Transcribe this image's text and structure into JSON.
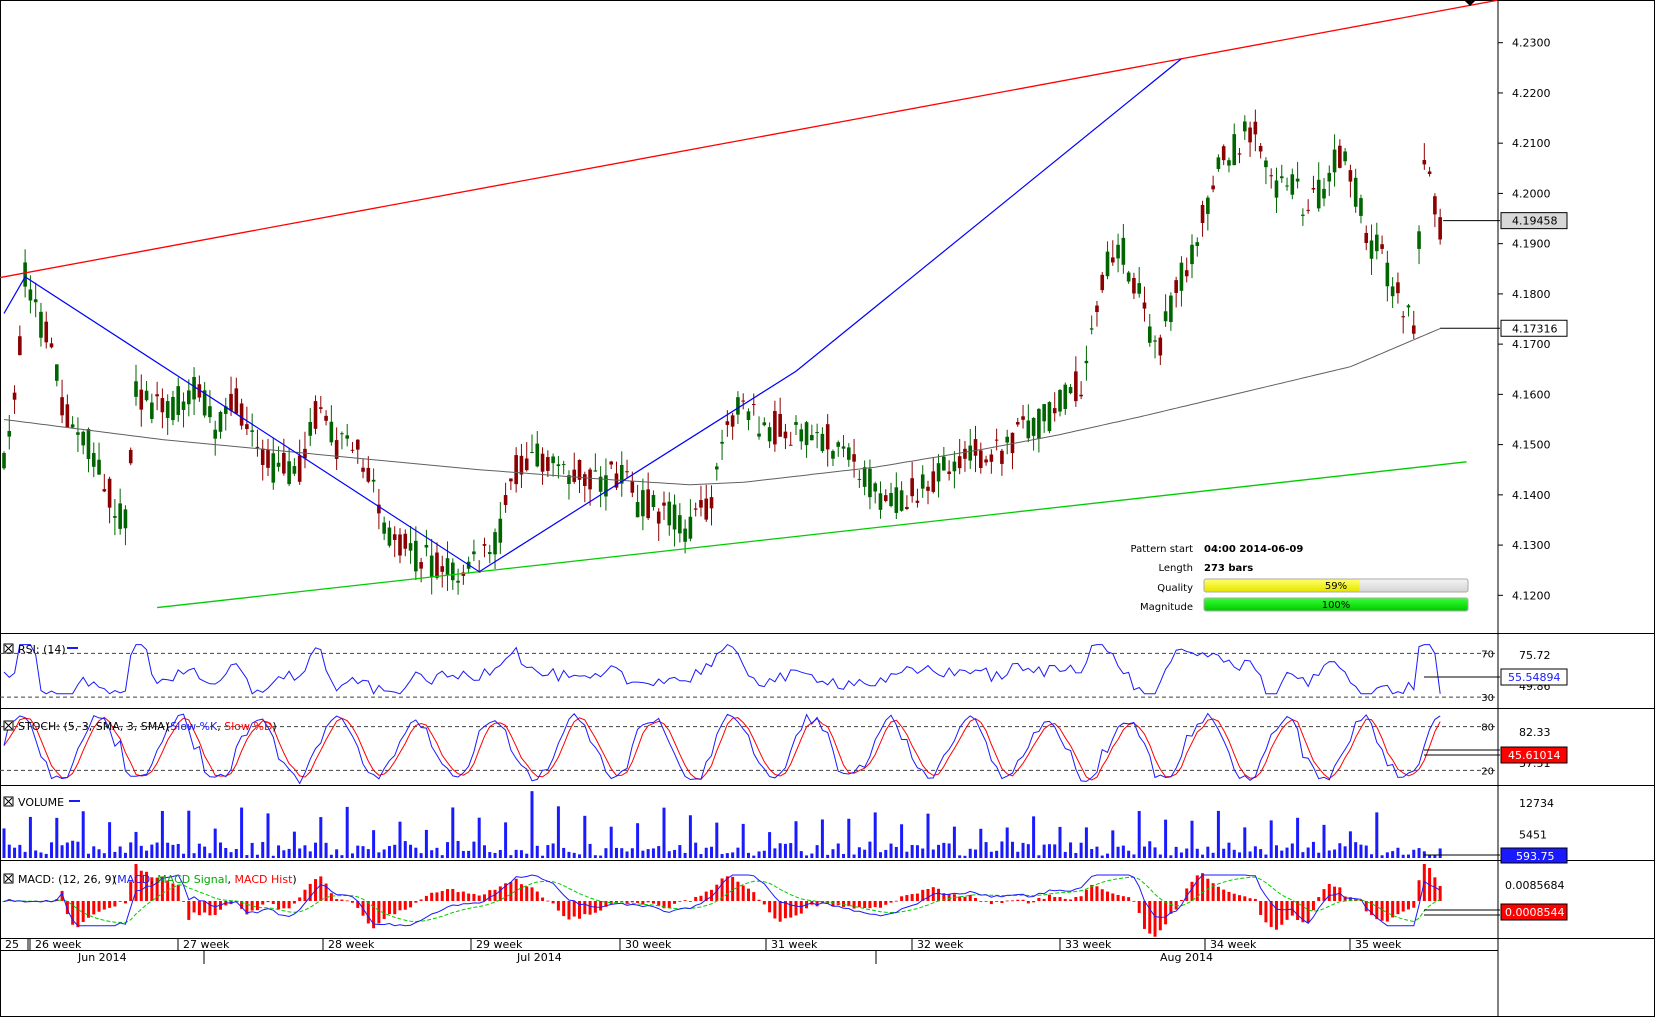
{
  "colors": {
    "bull": "#006400",
    "bear": "#8b0000",
    "resistance": "#ff0000",
    "support": "#00cc00",
    "zigzag": "#0000ff",
    "ma": "#606060",
    "rsi": "#1a1aff",
    "stoch_k": "#1a1aff",
    "stoch_d": "#ff0000",
    "volume": "#1a1aff",
    "macd": "#1a1aff",
    "macd_signal": "#00cc00",
    "macd_hist": "#ff0000",
    "quality_fill": "#ffff00",
    "magnitude_fill": "#00ee00"
  },
  "chart_data": [
    {
      "type": "candlestick",
      "title": "",
      "x_labels": [
        "25",
        "26 week",
        "27 week",
        "28 week",
        "29 week",
        "30 week",
        "31 week",
        "32 week",
        "33 week",
        "34 week",
        "35 week"
      ],
      "month_labels": [
        "Jun 2014",
        "Jul 2014",
        "Aug 2014"
      ],
      "ylim": [
        4.1125,
        4.2385
      ],
      "y_ticks": [
        "4.1200",
        "4.1300",
        "4.1400",
        "4.1500",
        "4.1600",
        "4.1700",
        "4.1800",
        "4.1900",
        "4.2000",
        "4.2100",
        "4.2200",
        "4.2300"
      ],
      "last_price": "4.19458",
      "ma_value": "4.17316",
      "ma_period_note": "",
      "pattern": {
        "title_start": "Pattern start",
        "start": "04:00 2014-06-09",
        "title_length": "Length",
        "length": "273 bars",
        "title_quality": "Quality",
        "quality_label": "59%",
        "quality": 0.59,
        "title_magnitude": "Magnitude",
        "magnitude_label": "100%",
        "magnitude": 1.0
      },
      "zigzag": [
        [
          0,
          4.1761
        ],
        [
          4,
          4.1834
        ],
        [
          90,
          4.1247
        ],
        [
          150,
          4.1646
        ],
        [
          223,
          4.2268
        ]
      ],
      "resistance_line": [
        [
          0,
          4.1834
        ],
        [
          223,
          4.2268
        ]
      ],
      "support_line": [
        [
          90,
          4.1247
        ],
        [
          143,
          4.1309
        ]
      ]
    },
    {
      "type": "line",
      "title": "RSI: (14)",
      "ylim": [
        20,
        85
      ],
      "levels": [
        "70",
        "30"
      ],
      "axis_value": "75.72",
      "partial_value": "49.86",
      "current_value": "55.54894"
    },
    {
      "type": "line",
      "title": "STOCH: (5, 3, SMA, 3, SMA)",
      "legend": [
        "Slow %K",
        "Slow %D"
      ],
      "ylim": [
        0,
        100
      ],
      "levels": [
        "80",
        "20"
      ],
      "axis_value": "82.33",
      "partial_value": "37.51",
      "current_value": "45.61014"
    },
    {
      "type": "bar",
      "title": "VOLUME",
      "ylim": [
        0,
        16000
      ],
      "y_ticks": [
        "12734",
        "5451"
      ],
      "current_value": "593.75"
    },
    {
      "type": "line",
      "title": "MACD: (12, 26, 9)",
      "legend": [
        "MACD",
        "MACD Signal",
        "MACD Hist"
      ],
      "ylim": [
        -0.0135,
        0.0135
      ],
      "axis_value": "0.0085684",
      "current_value": "0.0008544"
    }
  ]
}
